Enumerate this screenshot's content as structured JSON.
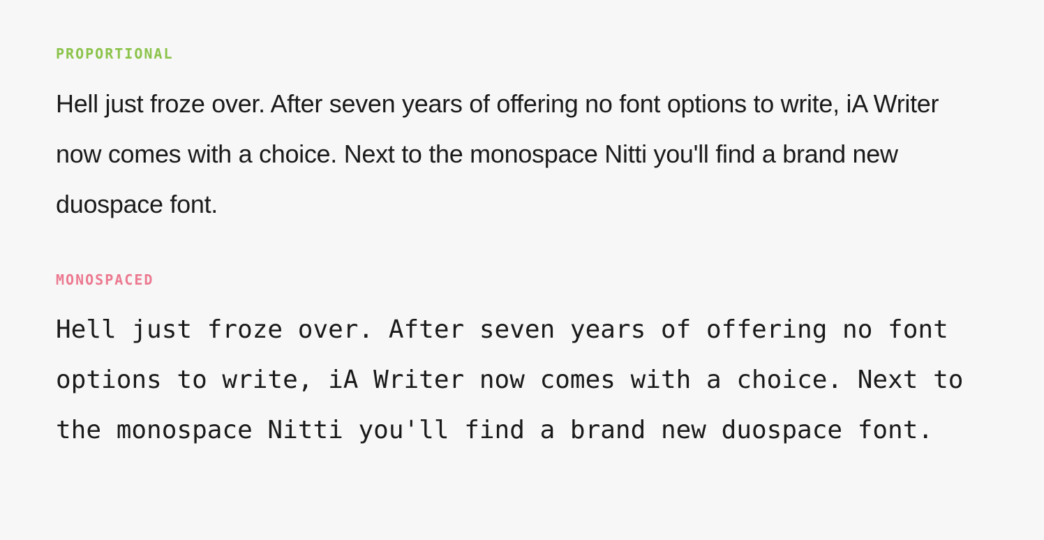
{
  "sections": {
    "proportional": {
      "label": "PROPORTIONAL",
      "label_color": "#8bc34a",
      "font_family": "sans-serif",
      "body": "Hell just froze over. After seven years of offering no font options to write, iA Writer now comes with a choice. Next to the monospace Nitti you'll find a brand new duospace font."
    },
    "monospaced": {
      "label": "MONOSPACED",
      "label_color": "#ec7990",
      "font_family": "monospace",
      "body": "Hell just froze over. After seven years of offering no font options to write, iA Writer now comes with a choice. Next to the monospace Nitti you'll find a brand new duospace font."
    }
  },
  "style": {
    "background_color": "#f7f7f7",
    "text_color": "#1a1a1a",
    "label_font_size": 20,
    "label_font_weight": 700,
    "label_letter_spacing": 2,
    "body_font_size": 36,
    "body_line_height": 2.0
  }
}
